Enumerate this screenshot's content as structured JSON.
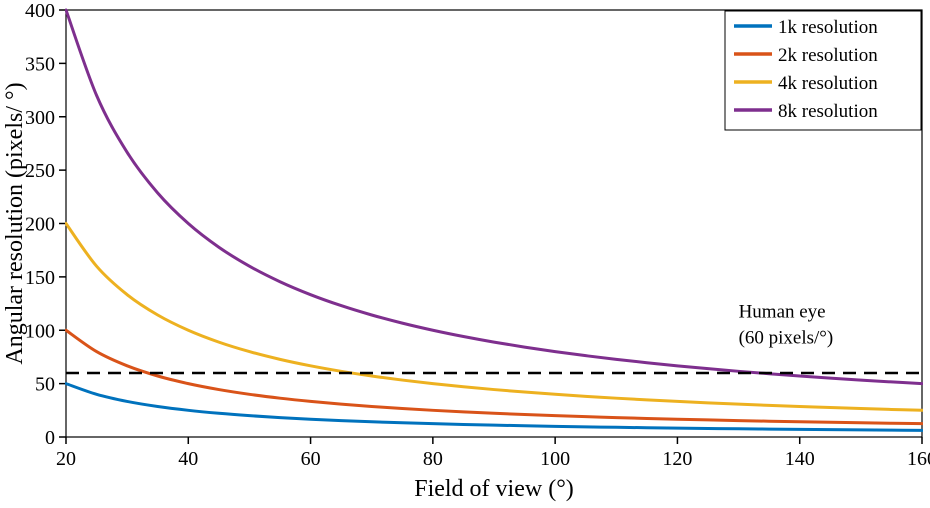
{
  "figure": {
    "background": "#ffffff",
    "axis_color": "#000000"
  },
  "chart_data": {
    "type": "line",
    "title": "",
    "xlabel": "Field of view (°)",
    "ylabel": "Angular resolution (pixels/ °)",
    "xlim": [
      20,
      160
    ],
    "ylim": [
      0,
      400
    ],
    "x_ticks": [
      20,
      40,
      60,
      80,
      100,
      120,
      140,
      160
    ],
    "y_ticks": [
      0,
      50,
      100,
      150,
      200,
      250,
      300,
      350,
      400
    ],
    "grid": false,
    "legend_position": "top-right",
    "x": [
      20,
      25,
      30,
      35,
      40,
      45,
      50,
      55,
      60,
      65,
      70,
      75,
      80,
      85,
      90,
      95,
      100,
      105,
      110,
      115,
      120,
      125,
      130,
      135,
      140,
      145,
      150,
      155,
      160
    ],
    "series": [
      {
        "name": "1k resolution",
        "color": "#0072BD",
        "values": [
          50,
          40,
          33.33,
          28.57,
          25,
          22.22,
          20,
          18.18,
          16.67,
          15.38,
          14.29,
          13.33,
          12.5,
          11.76,
          11.11,
          10.53,
          10,
          9.52,
          9.09,
          8.7,
          8.33,
          8,
          7.69,
          7.41,
          7.14,
          6.9,
          6.67,
          6.45,
          6.25
        ]
      },
      {
        "name": "2k resolution",
        "color": "#D95319",
        "values": [
          100,
          80,
          66.67,
          57.14,
          50,
          44.44,
          40,
          36.36,
          33.33,
          30.77,
          28.57,
          26.67,
          25,
          23.53,
          22.22,
          21.05,
          20,
          19.05,
          18.18,
          17.39,
          16.67,
          16,
          15.38,
          14.81,
          14.29,
          13.79,
          13.33,
          12.9,
          12.5
        ]
      },
      {
        "name": "4k resolution",
        "color": "#EDB120",
        "values": [
          200,
          160,
          133.33,
          114.29,
          100,
          88.89,
          80,
          72.73,
          66.67,
          61.54,
          57.14,
          53.33,
          50,
          47.06,
          44.44,
          42.11,
          40,
          38.1,
          36.36,
          34.78,
          33.33,
          32,
          30.77,
          29.63,
          28.57,
          27.59,
          26.67,
          25.81,
          25
        ]
      },
      {
        "name": "8k resolution",
        "color": "#7E2F8E",
        "values": [
          400,
          320,
          266.67,
          228.57,
          200,
          177.78,
          160,
          145.45,
          133.33,
          123.08,
          114.29,
          106.67,
          100,
          94.12,
          88.89,
          84.21,
          80,
          76.19,
          72.73,
          69.57,
          66.67,
          64,
          61.54,
          59.26,
          57.14,
          55.17,
          53.33,
          51.61,
          50
        ]
      }
    ],
    "reference_line": {
      "value": 60,
      "color": "#000000",
      "style": "dashed",
      "label_lines": [
        "Human eye",
        "(60 pixels/°)"
      ],
      "label_x": 130,
      "label_y": 112
    }
  }
}
